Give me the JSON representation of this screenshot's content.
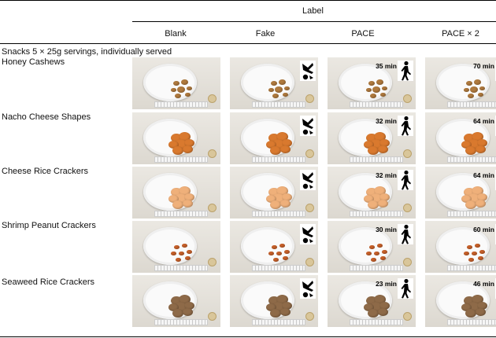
{
  "table": {
    "label_header": "Label",
    "columns": [
      "Blank",
      "Fake",
      "PACE",
      "PACE × 2"
    ],
    "section_title": "Snacks 5 × 25g servings, individually served",
    "rows": [
      {
        "name": "Honey Cashews",
        "pace": "35 min",
        "pace2": "70 min"
      },
      {
        "name": "Nacho Cheese Shapes",
        "pace": "32 min",
        "pace2": "64 min"
      },
      {
        "name": "Cheese Rice Crackers",
        "pace": "32 min",
        "pace2": "64 min"
      },
      {
        "name": "Shrimp Peanut Crackers",
        "pace": "30 min",
        "pace2": "60 min"
      },
      {
        "name": "Seaweed Rice Crackers",
        "pace": "23 min",
        "pace2": "46 min"
      }
    ]
  },
  "icons": {
    "fake": "abstract-black-glyph-icon",
    "pace": "walking-person-icon"
  },
  "colors": {
    "cashew": "#b07a3e",
    "nacho": "#d9792e",
    "rice": "#efb07a",
    "shrimp": "#c9612a",
    "seaweed": "#8e6a48"
  }
}
